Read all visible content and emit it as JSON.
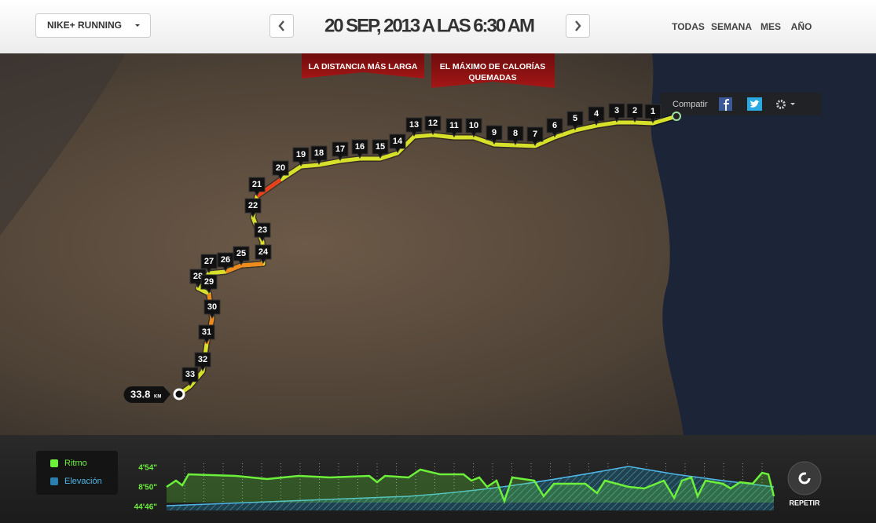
{
  "header": {
    "dropdown": "NIKE+ RUNNING",
    "date": "20 SEP, 2013 A LAS 6:30 AM",
    "nav": [
      "TODAS",
      "SEMANA",
      "MES",
      "AÑO"
    ]
  },
  "ribbons": [
    "LA DISTANCIA MÁS LARGA",
    "EL MÁXIMO DE CALORÍAS",
    "QUEMADAS"
  ],
  "share": {
    "label": "Compatir"
  },
  "markers": [
    "1",
    "2",
    "3",
    "4",
    "5",
    "6",
    "7",
    "8",
    "9",
    "10",
    "11",
    "12",
    "13",
    "14",
    "15",
    "16",
    "17",
    "18",
    "19",
    "20",
    "21",
    "22",
    "23",
    "24",
    "25",
    "26",
    "27",
    "28",
    "29",
    "30",
    "31",
    "32",
    "33"
  ],
  "distance": {
    "value": "33.8",
    "unit": "KM"
  },
  "legend": [
    "Ritmo",
    "Elevación"
  ],
  "chart": {
    "yaxis": [
      "4'54\"",
      "8'50\"",
      "44'46\""
    ]
  },
  "replay": "REPETIR"
}
